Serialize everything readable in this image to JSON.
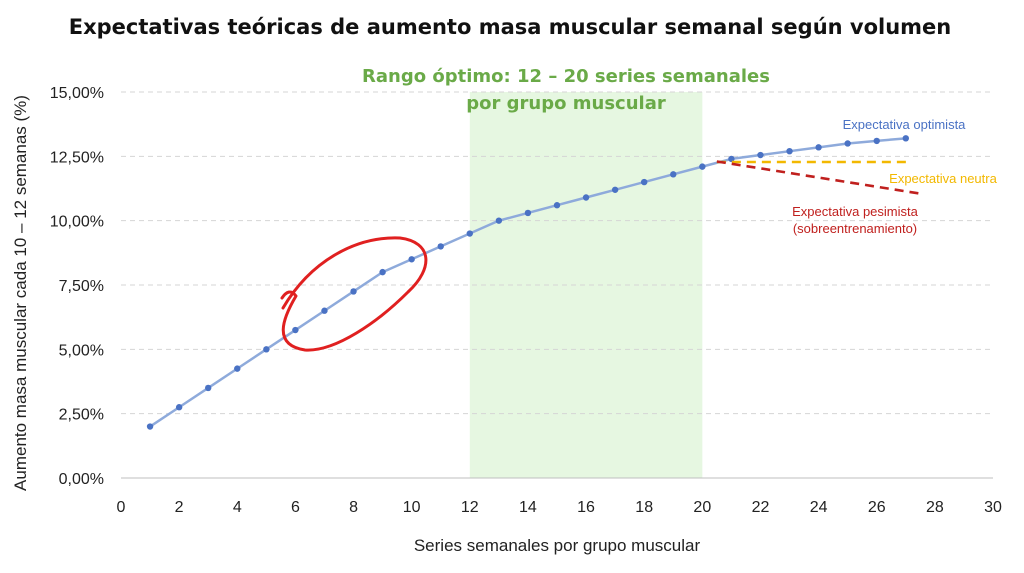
{
  "chart_data": {
    "type": "line",
    "title": "Expectativas teóricas de aumento masa muscular semanal según volumen",
    "xlabel": "Series semanales por grupo muscular",
    "ylabel": "Aumento masa muscular cada 10 – 12 semanas (%)",
    "xlim": [
      0,
      30
    ],
    "ylim": [
      0,
      15
    ],
    "x_ticks": [
      "0",
      "2",
      "4",
      "6",
      "8",
      "10",
      "12",
      "14",
      "16",
      "18",
      "20",
      "22",
      "24",
      "26",
      "28",
      "30"
    ],
    "y_ticks": [
      "0,00%",
      "2,50%",
      "5,00%",
      "7,50%",
      "10,00%",
      "12,50%",
      "15,00%"
    ],
    "grid": "horizontal dashed",
    "highlight_band": {
      "x_range": [
        12,
        20
      ],
      "label_line1": "Rango óptimo: 12 – 20 series semanales",
      "label_line2": "por grupo muscular",
      "color": "#e6f7e1",
      "label_color": "#6aaa48"
    },
    "series": [
      {
        "name": "Expectativa optimista",
        "color": "#4a72c4",
        "line_color": "#8eaadb",
        "style": "solid-with-markers",
        "x": [
          1,
          2,
          3,
          4,
          5,
          6,
          7,
          8,
          9,
          10,
          11,
          12,
          13,
          14,
          15,
          16,
          17,
          18,
          19,
          20,
          21,
          22,
          23,
          24,
          25,
          26,
          27
        ],
        "y": [
          2.0,
          2.75,
          3.5,
          4.25,
          5.0,
          5.75,
          6.5,
          7.25,
          8.0,
          8.5,
          9.0,
          9.5,
          10.0,
          10.3,
          10.6,
          10.9,
          11.2,
          11.5,
          11.8,
          12.1,
          12.4,
          12.55,
          12.7,
          12.85,
          13.0,
          13.1,
          13.2
        ]
      },
      {
        "name": "Expectativa neutra",
        "color": "#f2b800",
        "style": "dashed",
        "x": [
          20.5,
          27.2
        ],
        "y": [
          12.28,
          12.28
        ]
      },
      {
        "name": "Expectativa pesimista",
        "subname": "(sobreentrenamiento)",
        "color": "#c0201e",
        "style": "dashed",
        "x": [
          20.5,
          27.5
        ],
        "y": [
          12.3,
          11.05
        ]
      }
    ],
    "annotation": {
      "type": "hand-drawn circle",
      "color": "#e02020",
      "around_x": [
        6,
        10
      ]
    }
  }
}
